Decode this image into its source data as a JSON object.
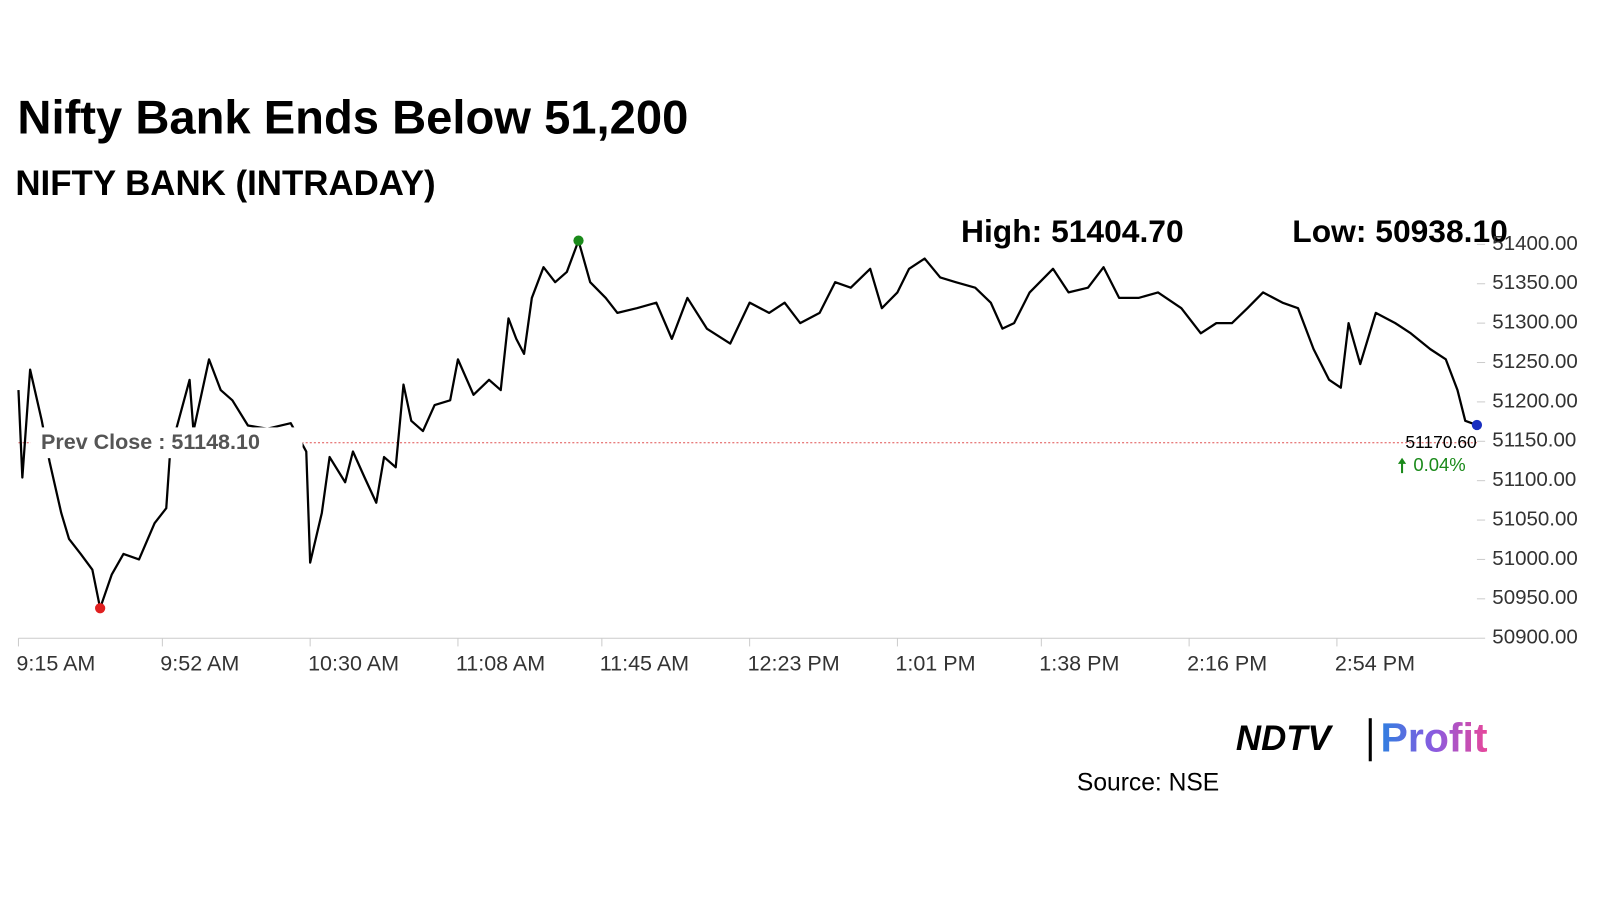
{
  "chart_data": {
    "type": "line",
    "title": "Nifty Bank Ends Below 51,200",
    "subtitle": "NIFTY BANK (INTRADAY)",
    "high": {
      "text": "High:",
      "value": 51404.7,
      "value_label": "51404.70"
    },
    "low": {
      "text": "Low:",
      "value": 50938.1,
      "value_label": "50938.10"
    },
    "prev_close": {
      "text": "Prev Close :",
      "value": 51148.1,
      "value_label": "51148.10"
    },
    "last": {
      "value": 51170.6,
      "value_label": "51170.60"
    },
    "change": {
      "value": 0.04,
      "value_label": "0.04%"
    },
    "xlim": [
      "9:15 AM",
      "3:30 PM"
    ],
    "xticks": [
      "9:15 AM",
      "9:52 AM",
      "10:30 AM",
      "11:08 AM",
      "11:45 AM",
      "12:23 PM",
      "1:01 PM",
      "1:38 PM",
      "2:16 PM",
      "2:54 PM"
    ],
    "ylim": [
      50900,
      51400
    ],
    "yticks": [
      {
        "value": 50900,
        "label": "50900.00"
      },
      {
        "value": 50950,
        "label": "50950.00"
      },
      {
        "value": 51000,
        "label": "51000.00"
      },
      {
        "value": 51050,
        "label": "51050.00"
      },
      {
        "value": 51100,
        "label": "51100.00"
      },
      {
        "value": 51150,
        "label": "51150.00"
      },
      {
        "value": 51200,
        "label": "51200.00"
      },
      {
        "value": 51250,
        "label": "51250.00"
      },
      {
        "value": 51300,
        "label": "51300.00"
      },
      {
        "value": 51350,
        "label": "51350.00"
      },
      {
        "value": 51400,
        "label": "51400.00"
      }
    ],
    "series": [
      {
        "color": "#000000",
        "x": [
          "9:15 AM",
          "9:16 AM",
          "9:18 AM",
          "9:21 AM",
          "9:23 AM",
          "9:26 AM",
          "9:28 AM",
          "9:31 AM",
          "9:34 AM",
          "9:36 AM",
          "9:39 AM",
          "9:42 AM",
          "9:46 AM",
          "9:50 AM",
          "9:53 AM",
          "9:54 AM",
          "9:59 AM",
          "10:00 AM",
          "10:04 AM",
          "10:07 AM",
          "10:10 AM",
          "10:14 AM",
          "10:19 AM",
          "10:25 AM",
          "10:29 AM",
          "10:30 AM",
          "10:33 AM",
          "10:35 AM",
          "10:39 AM",
          "10:41 AM",
          "10:44 AM",
          "10:47 AM",
          "10:49 AM",
          "10:52 AM",
          "10:54 AM",
          "10:56 AM",
          "10:59 AM",
          "11:02 AM",
          "11:06 AM",
          "11:08 AM",
          "11:12 AM",
          "11:16 AM",
          "11:19 AM",
          "11:21 AM",
          "11:23 AM",
          "11:25 AM",
          "11:27 AM",
          "11:30 AM",
          "11:33 AM",
          "11:36 AM",
          "11:39 AM",
          "11:42 AM",
          "11:46 AM",
          "11:49 AM",
          "11:54 AM",
          "11:59 AM",
          "12:03 PM",
          "12:07 PM",
          "12:12 PM",
          "12:18 PM",
          "12:23 PM",
          "12:28 PM",
          "12:32 PM",
          "12:36 PM",
          "12:41 PM",
          "12:45 PM",
          "12:49 PM",
          "12:54 PM",
          "12:57 PM",
          "1:01 PM",
          "1:04 PM",
          "1:08 PM",
          "1:12 PM",
          "1:16 PM",
          "1:21 PM",
          "1:25 PM",
          "1:28 PM",
          "1:31 PM",
          "1:35 PM",
          "1:41 PM",
          "1:45 PM",
          "1:50 PM",
          "1:54 PM",
          "1:58 PM",
          "2:03 PM",
          "2:08 PM",
          "2:14 PM",
          "2:19 PM",
          "2:23 PM",
          "2:27 PM",
          "2:31 PM",
          "2:35 PM",
          "2:40 PM",
          "2:44 PM",
          "2:48 PM",
          "2:52 PM",
          "2:55 PM",
          "2:57 PM",
          "3:00 PM",
          "3:04 PM",
          "3:09 PM",
          "3:13 PM",
          "3:18 PM",
          "3:22 PM",
          "3:25 PM",
          "3:27 PM",
          "3:30 PM"
        ],
        "values": [
          51215,
          51104,
          51241,
          51176,
          51124,
          51059,
          51026,
          51007,
          50987,
          50938.1,
          50981,
          51007,
          51000,
          51046,
          51065,
          51137,
          51228,
          51163,
          51254,
          51215,
          51202,
          51170,
          51166,
          51173,
          51137,
          50996,
          51059,
          51130,
          51098,
          51137,
          51104,
          51072,
          51130,
          51117,
          51222,
          51176,
          51163,
          51196,
          51202,
          51254,
          51209,
          51228,
          51215,
          51306,
          51280,
          51261,
          51332,
          51371,
          51352,
          51365,
          51404.7,
          51352,
          51332,
          51313,
          51319,
          51326,
          51280,
          51332,
          51293,
          51274,
          51326,
          51313,
          51326,
          51300,
          51313,
          51352,
          51345,
          51369,
          51319,
          51339,
          51369,
          51382,
          51358,
          51352,
          51345,
          51326,
          51293,
          51300,
          51339,
          51369,
          51339,
          51345,
          51371,
          51332,
          51332,
          51339,
          51319,
          51287,
          51300,
          51300,
          51319,
          51339,
          51326,
          51319,
          51267,
          51228,
          51218,
          51300,
          51248,
          51313,
          51300,
          51287,
          51267,
          51254,
          51215,
          51176,
          51170.6
        ]
      }
    ],
    "source": "Source: NSE",
    "logo": {
      "brand": "NDTV",
      "product": "Profit"
    }
  }
}
